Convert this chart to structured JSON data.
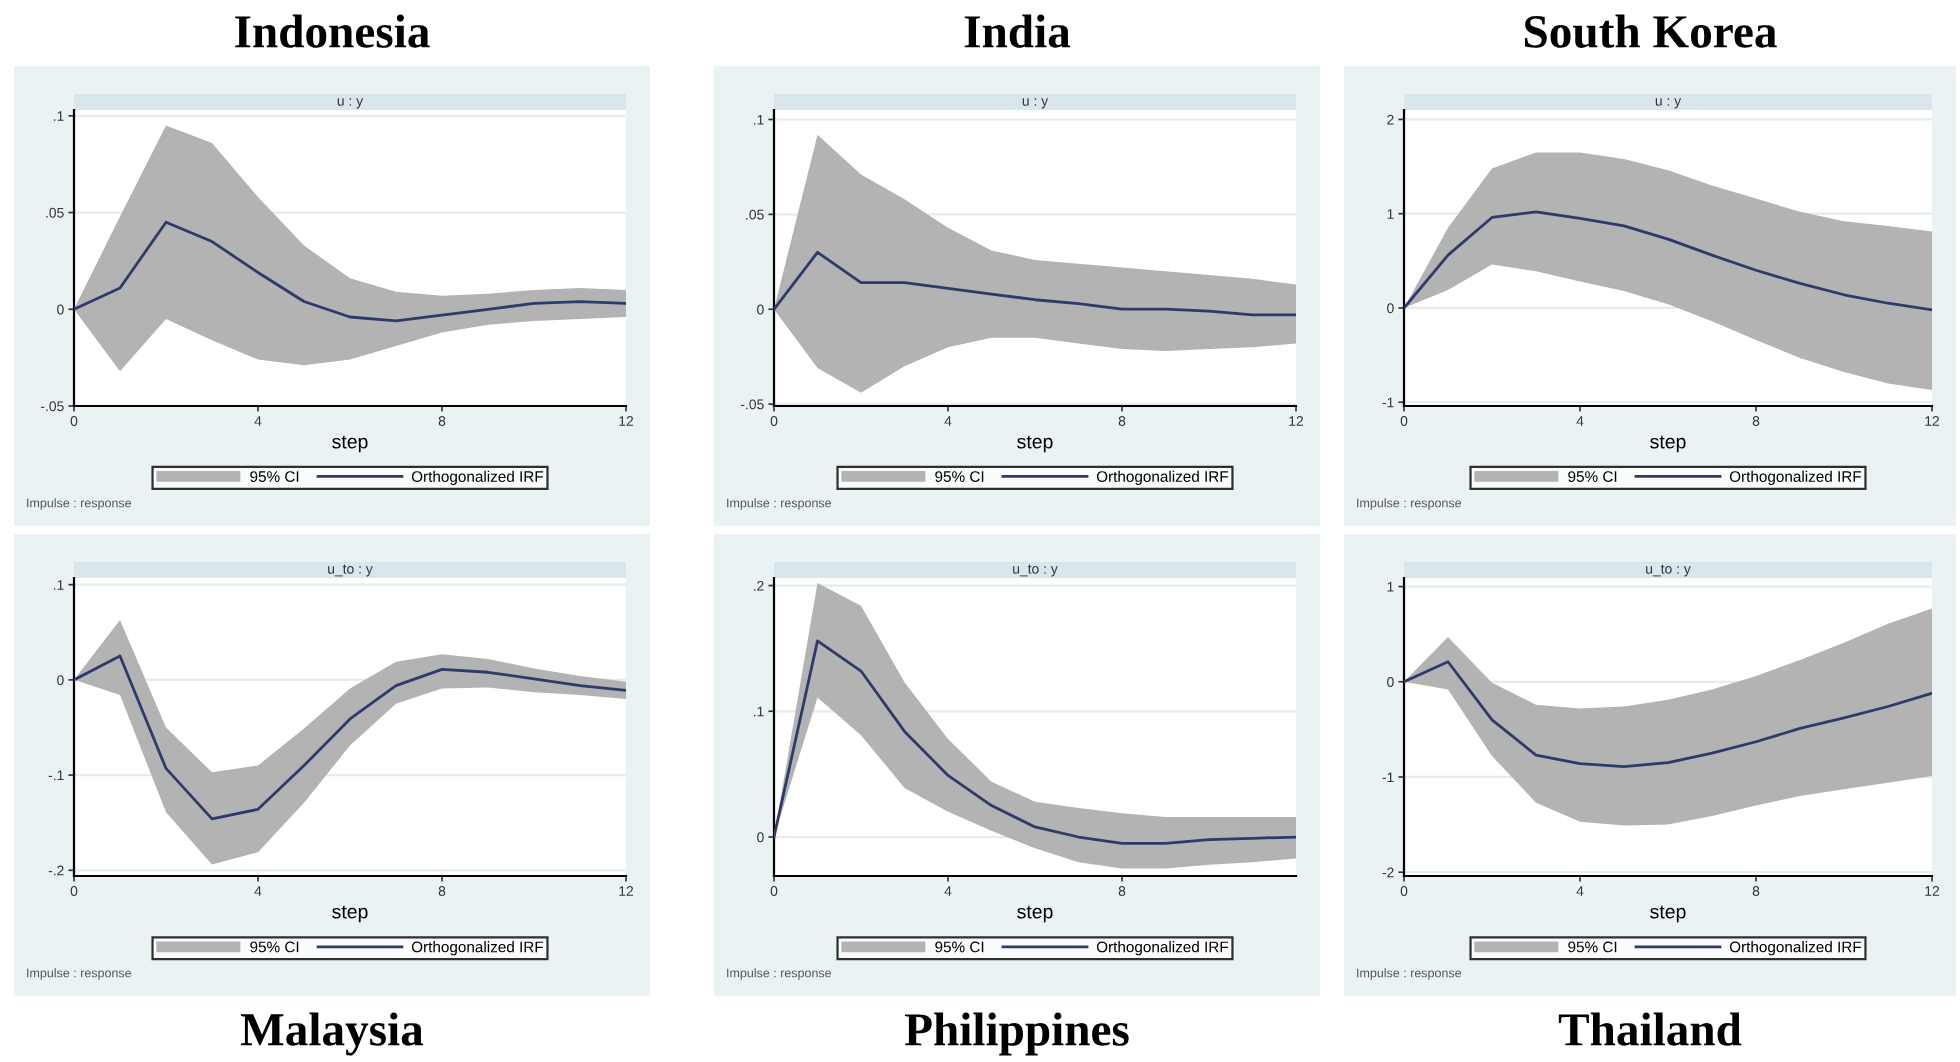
{
  "chart_data": [
    {
      "type": "line",
      "title": "Indonesia",
      "subtitle": "u : y",
      "xlabel": "step",
      "annotations": [
        "95% CI",
        "Impulse : response"
      ],
      "x": [
        0,
        1,
        2,
        3,
        4,
        5,
        6,
        7,
        8,
        9,
        10,
        11,
        12
      ],
      "xlim": [
        0,
        12
      ],
      "xticks": [
        0,
        4,
        8,
        12
      ],
      "ylim": [
        -0.05,
        0.103
      ],
      "yticks": [
        {
          "value": -0.05,
          "label": "-.05"
        },
        0,
        {
          "value": 0.05,
          "label": ".05"
        },
        {
          "value": 0.1,
          "label": ".1"
        }
      ],
      "grid": "y",
      "legend": "bottom",
      "series": [
        {
          "name": "Orthogonalized IRF",
          "color": "#2e3a6b",
          "values": [
            0,
            0.011,
            0.045,
            0.035,
            0.019,
            0.004,
            -0.004,
            -0.006,
            -0.003,
            0,
            0.003,
            0.004,
            0.003
          ],
          "upper": [
            0,
            0.048,
            0.095,
            0.086,
            0.058,
            0.033,
            0.016,
            0.009,
            0.007,
            0.008,
            0.01,
            0.011,
            0.01
          ],
          "lower": [
            0,
            -0.032,
            -0.005,
            -0.016,
            -0.026,
            -0.029,
            -0.026,
            -0.019,
            -0.012,
            -0.008,
            -0.006,
            -0.005,
            -0.004
          ]
        }
      ]
    },
    {
      "type": "line",
      "title": "India",
      "subtitle": "u : y",
      "xlabel": "step",
      "annotations": [
        "95% CI",
        "Impulse : response"
      ],
      "x": [
        0,
        1,
        2,
        3,
        4,
        5,
        6,
        7,
        8,
        9,
        10,
        11,
        12
      ],
      "xlim": [
        0,
        12
      ],
      "xticks": [
        0,
        4,
        8,
        12
      ],
      "ylim": [
        -0.051,
        0.105
      ],
      "yticks": [
        {
          "value": -0.05,
          "label": "-.05"
        },
        0,
        {
          "value": 0.05,
          "label": ".05"
        },
        {
          "value": 0.1,
          "label": ".1"
        }
      ],
      "grid": "y",
      "legend": "bottom",
      "series": [
        {
          "name": "Orthogonalized IRF",
          "color": "#2e3a6b",
          "values": [
            0,
            0.03,
            0.014,
            0.014,
            0.011,
            0.008,
            0.005,
            0.003,
            0,
            0,
            -0.001,
            -0.003,
            -0.003
          ],
          "upper": [
            0,
            0.092,
            0.071,
            0.058,
            0.043,
            0.031,
            0.026,
            0.024,
            0.022,
            0.02,
            0.018,
            0.016,
            0.013
          ],
          "lower": [
            0,
            -0.031,
            -0.044,
            -0.03,
            -0.02,
            -0.015,
            -0.015,
            -0.018,
            -0.021,
            -0.022,
            -0.021,
            -0.02,
            -0.018
          ]
        }
      ]
    },
    {
      "type": "line",
      "title": "South Korea",
      "subtitle": "u : y",
      "xlabel": "step",
      "annotations": [
        "95% CI",
        "Impulse : response"
      ],
      "x": [
        0,
        1,
        2,
        3,
        4,
        5,
        6,
        7,
        8,
        9,
        10,
        11,
        12
      ],
      "xlim": [
        0,
        12
      ],
      "xticks": [
        0,
        4,
        8,
        12
      ],
      "ylim": [
        -1.04,
        2.1
      ],
      "yticks": [
        -1,
        0,
        1,
        2
      ],
      "grid": "y",
      "legend": "bottom",
      "series": [
        {
          "name": "Orthogonalized IRF",
          "color": "#2e3a6b",
          "values": [
            0,
            0.56,
            0.96,
            1.02,
            0.95,
            0.87,
            0.73,
            0.56,
            0.4,
            0.26,
            0.14,
            0.05,
            -0.02
          ],
          "upper": [
            0,
            0.85,
            1.48,
            1.65,
            1.65,
            1.58,
            1.46,
            1.3,
            1.16,
            1.02,
            0.92,
            0.87,
            0.81
          ],
          "lower": [
            0,
            0.19,
            0.46,
            0.39,
            0.28,
            0.18,
            0.04,
            -0.14,
            -0.34,
            -0.53,
            -0.68,
            -0.8,
            -0.87
          ]
        }
      ]
    },
    {
      "type": "line",
      "title": "Malaysia",
      "subtitle": "u_to : y",
      "xlabel": "step",
      "annotations": [
        "95% CI",
        "Impulse : response"
      ],
      "x": [
        0,
        1,
        2,
        3,
        4,
        5,
        6,
        7,
        8,
        9,
        10,
        11,
        12
      ],
      "xlim": [
        0,
        12
      ],
      "xticks": [
        0,
        4,
        8,
        12
      ],
      "ylim": [
        -0.206,
        0.107
      ],
      "yticks": [
        {
          "value": -0.2,
          "label": "-.2"
        },
        {
          "value": -0.1,
          "label": "-.1"
        },
        0,
        {
          "value": 0.1,
          "label": ".1"
        }
      ],
      "grid": "y",
      "legend": "bottom",
      "series": [
        {
          "name": "Orthogonalized IRF",
          "color": "#2e3a6b",
          "values": [
            0,
            0.025,
            -0.093,
            -0.146,
            -0.136,
            -0.09,
            -0.041,
            -0.006,
            0.011,
            0.008,
            0.001,
            -0.006,
            -0.011
          ],
          "upper": [
            0,
            0.063,
            -0.05,
            -0.097,
            -0.09,
            -0.051,
            -0.009,
            0.019,
            0.027,
            0.022,
            0.012,
            0.004,
            -0.002
          ],
          "lower": [
            0,
            -0.016,
            -0.139,
            -0.194,
            -0.181,
            -0.129,
            -0.069,
            -0.025,
            -0.009,
            -0.008,
            -0.013,
            -0.016,
            -0.02
          ]
        }
      ]
    },
    {
      "type": "line",
      "title": "Philippines",
      "subtitle": "u_to : y",
      "xlabel": "step",
      "annotations": [
        "95% CI",
        "Impulse : response"
      ],
      "x": [
        0,
        1,
        2,
        3,
        4,
        5,
        6,
        7,
        8,
        9,
        10,
        11,
        12
      ],
      "xlim": [
        0,
        12
      ],
      "xticks": [
        0,
        4,
        8
      ],
      "ylim": [
        -0.031,
        0.206
      ],
      "yticks": [
        0,
        {
          "value": 0.1,
          "label": ".1"
        },
        {
          "value": 0.2,
          "label": ".2"
        }
      ],
      "grid": "y",
      "legend": "bottom",
      "series": [
        {
          "name": "Orthogonalized IRF",
          "color": "#2e3a6b",
          "values": [
            0,
            0.156,
            0.132,
            0.084,
            0.049,
            0.025,
            0.008,
            0,
            -0.005,
            -0.005,
            -0.002,
            -0.001,
            0
          ],
          "upper": [
            0,
            0.202,
            0.184,
            0.123,
            0.078,
            0.044,
            0.028,
            0.023,
            0.019,
            0.016,
            0.016,
            0.016,
            0.016
          ],
          "lower": [
            0,
            0.111,
            0.081,
            0.039,
            0.02,
            0.005,
            -0.009,
            -0.02,
            -0.025,
            -0.025,
            -0.022,
            -0.02,
            -0.017
          ]
        }
      ]
    },
    {
      "type": "line",
      "title": "Thailand",
      "subtitle": "u_to : y",
      "xlabel": "step",
      "annotations": [
        "95% CI",
        "Impulse : response"
      ],
      "x": [
        0,
        1,
        2,
        3,
        4,
        5,
        6,
        7,
        8,
        9,
        10,
        11,
        12
      ],
      "xlim": [
        0,
        12
      ],
      "xticks": [
        0,
        4,
        8,
        12
      ],
      "ylim": [
        -2.04,
        1.09
      ],
      "yticks": [
        -2,
        -1,
        0,
        1
      ],
      "grid": "y",
      "legend": "bottom",
      "series": [
        {
          "name": "Orthogonalized IRF",
          "color": "#2e3a6b",
          "values": [
            0,
            0.21,
            -0.4,
            -0.77,
            -0.86,
            -0.89,
            -0.85,
            -0.75,
            -0.63,
            -0.49,
            -0.38,
            -0.26,
            -0.12
          ],
          "upper": [
            0,
            0.47,
            -0.01,
            -0.24,
            -0.28,
            -0.26,
            -0.19,
            -0.08,
            0.06,
            0.23,
            0.41,
            0.61,
            0.77
          ],
          "lower": [
            0,
            -0.08,
            -0.78,
            -1.27,
            -1.47,
            -1.51,
            -1.5,
            -1.41,
            -1.3,
            -1.2,
            -1.13,
            -1.06,
            -0.99
          ]
        }
      ]
    }
  ]
}
